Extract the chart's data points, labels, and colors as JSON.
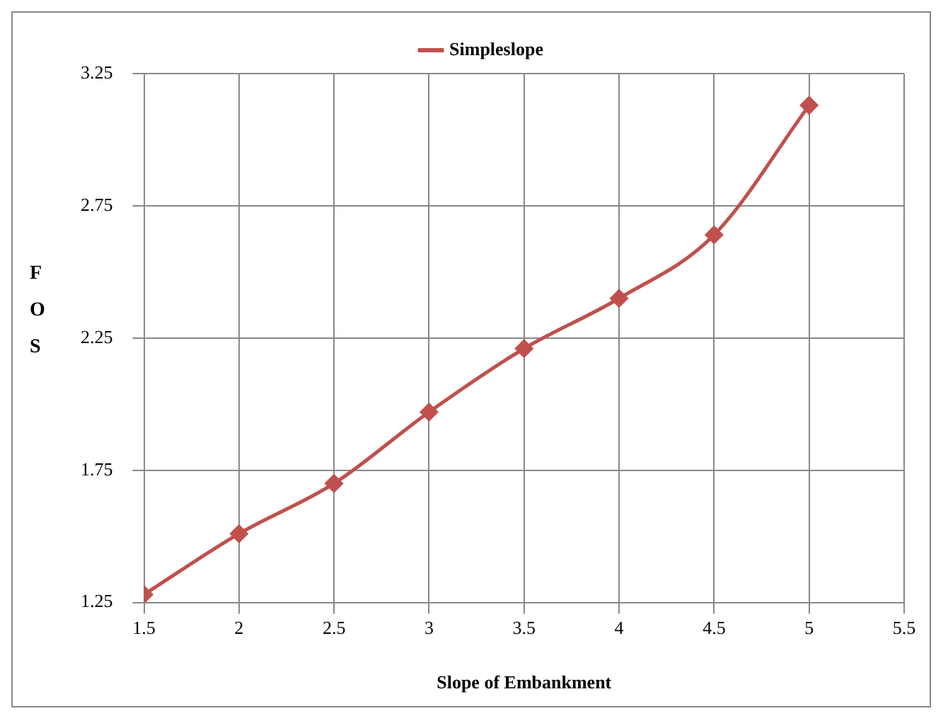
{
  "chart_data": {
    "type": "line",
    "xlabel": "Slope of Embankment",
    "ylabel": "FOS",
    "x": [
      1.5,
      2,
      2.5,
      3,
      3.5,
      4,
      4.5,
      5
    ],
    "series": [
      {
        "name": "Simpleslope",
        "color": "#c0504d",
        "values": [
          1.28,
          1.51,
          1.7,
          1.97,
          2.21,
          2.4,
          2.64,
          3.13
        ]
      }
    ],
    "xlim": [
      1.5,
      5.5
    ],
    "xticks": [
      1.5,
      2,
      2.5,
      3,
      3.5,
      4,
      4.5,
      5,
      5.5
    ],
    "ylim": [
      1.25,
      3.25
    ],
    "yticks": [
      1.25,
      1.75,
      2.25,
      2.75,
      3.25
    ],
    "grid": true,
    "legend": "top",
    "marker": "diamond",
    "line_style": "solid"
  }
}
